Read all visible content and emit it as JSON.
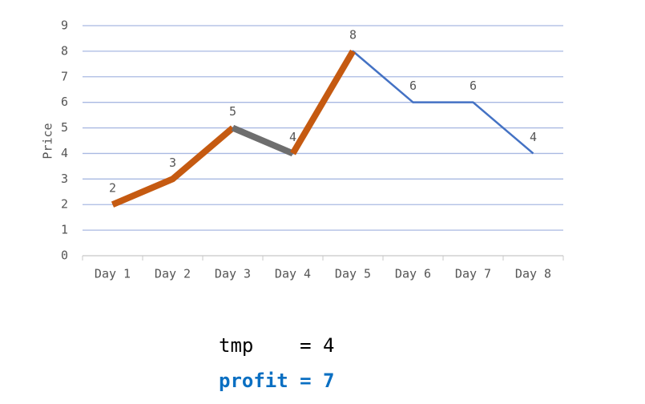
{
  "chart_data": {
    "type": "line",
    "ylabel": "Price",
    "categories": [
      "Day 1",
      "Day 2",
      "Day 3",
      "Day 4",
      "Day 5",
      "Day 6",
      "Day 7",
      "Day 8"
    ],
    "series": [
      {
        "color": "#4472c4",
        "values": [
          2,
          3,
          5,
          4,
          8,
          6,
          6,
          4
        ],
        "data_labels": true
      },
      {
        "color": "#c55a11",
        "style": "highlight",
        "values": [
          2,
          3,
          5,
          null,
          null,
          null,
          null,
          null
        ]
      },
      {
        "color": "#6e6e6e",
        "style": "highlight",
        "values": [
          null,
          null,
          5,
          4,
          null,
          null,
          null,
          null
        ]
      },
      {
        "color": "#c55a11",
        "style": "highlight",
        "values": [
          null,
          null,
          null,
          4,
          8,
          null,
          null,
          null
        ]
      }
    ],
    "ylim": [
      0,
      9
    ],
    "yticks": [
      0,
      1,
      2,
      3,
      4,
      5,
      6,
      7,
      8,
      9
    ],
    "grid": true,
    "grid_color": "#a9b9e2"
  },
  "annotations": [
    {
      "text": "tmp    = 4",
      "color": "#000000",
      "bold": false
    },
    {
      "text": "profit = 7",
      "color": "#0a6fc2",
      "bold": true
    }
  ]
}
